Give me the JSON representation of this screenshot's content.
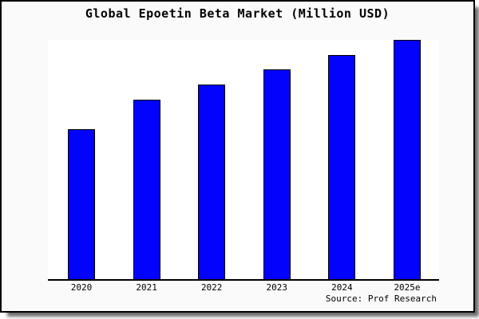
{
  "title": "Global Epoetin Beta Market (Million USD)",
  "source_note": "Source: Prof Research",
  "colors": {
    "bar_fill": "#0202fd",
    "bar_border": "#000000",
    "canvas_background": "#fafafa",
    "plot_background": "#ffffff",
    "axis_line": "#000000",
    "frame_border": "#000000",
    "shadow": "#6e6e6e"
  },
  "chart_data": {
    "type": "bar",
    "title": "Global Epoetin Beta Market (Million USD)",
    "categories": [
      "2020",
      "2021",
      "2022",
      "2023",
      "2024",
      "2025e"
    ],
    "values": [
      62.7,
      75.0,
      81.3,
      87.7,
      93.7,
      100.0
    ],
    "value_unit": "relative bar height, % of tallest bar (no y-axis ticks or labels shown)",
    "xlabel": "",
    "ylabel": "",
    "ylim": [
      0,
      100
    ],
    "grid": false,
    "legend": false,
    "axes_shown": [
      "bottom"
    ],
    "source_note": "Source: Prof Research"
  }
}
